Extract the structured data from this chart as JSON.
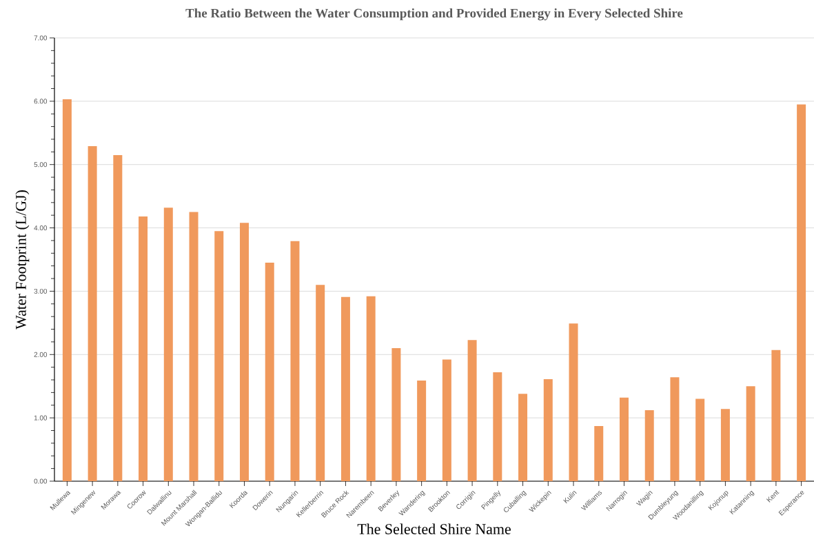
{
  "chart_data": {
    "type": "bar",
    "title": "The Ratio Between the Water Consumption and Provided Energy in Every Selected Shire",
    "xlabel": "The Selected Shire Name",
    "ylabel": "Water Footprint (L/GJ)",
    "categories": [
      "Mullewa",
      "Mingenew",
      "Morawa",
      "Coorow",
      "Dalwallinu",
      "Mount Marshall",
      "Wongan-Ballidu",
      "Koorda",
      "Dowerin",
      "Nungarin",
      "Kellerberrin",
      "Bruce Rock",
      "Narembeen",
      "Beverley",
      "Wandering",
      "Brookton",
      "Corrigin",
      "Pingelly",
      "Cuballing",
      "Wickepin",
      "Kulin",
      "Williams",
      "Narrogin",
      "Wagin",
      "Dumbleyung",
      "Woodanilling",
      "Kojonup",
      "Katanning",
      "Kent",
      "Esperance"
    ],
    "values": [
      6.03,
      5.29,
      5.15,
      4.18,
      4.32,
      4.25,
      3.95,
      4.08,
      3.45,
      3.79,
      3.1,
      2.91,
      2.92,
      2.1,
      1.59,
      1.92,
      2.23,
      1.72,
      1.38,
      1.61,
      2.49,
      0.87,
      1.32,
      1.12,
      1.64,
      1.3,
      1.14,
      1.5,
      2.07,
      5.95
    ],
    "color": "#f0995c",
    "ylim": [
      0,
      7
    ],
    "yticks": [
      {
        "value": 0,
        "label": "0.00"
      },
      {
        "value": 1,
        "label": "1.00"
      },
      {
        "value": 2,
        "label": "2.00"
      },
      {
        "value": 3,
        "label": "3.00"
      },
      {
        "value": 4,
        "label": "4.00"
      },
      {
        "value": 5,
        "label": "5.00"
      },
      {
        "value": 6,
        "label": "6.00"
      },
      {
        "value": 7,
        "label": "7.00"
      }
    ],
    "grid": "y"
  }
}
